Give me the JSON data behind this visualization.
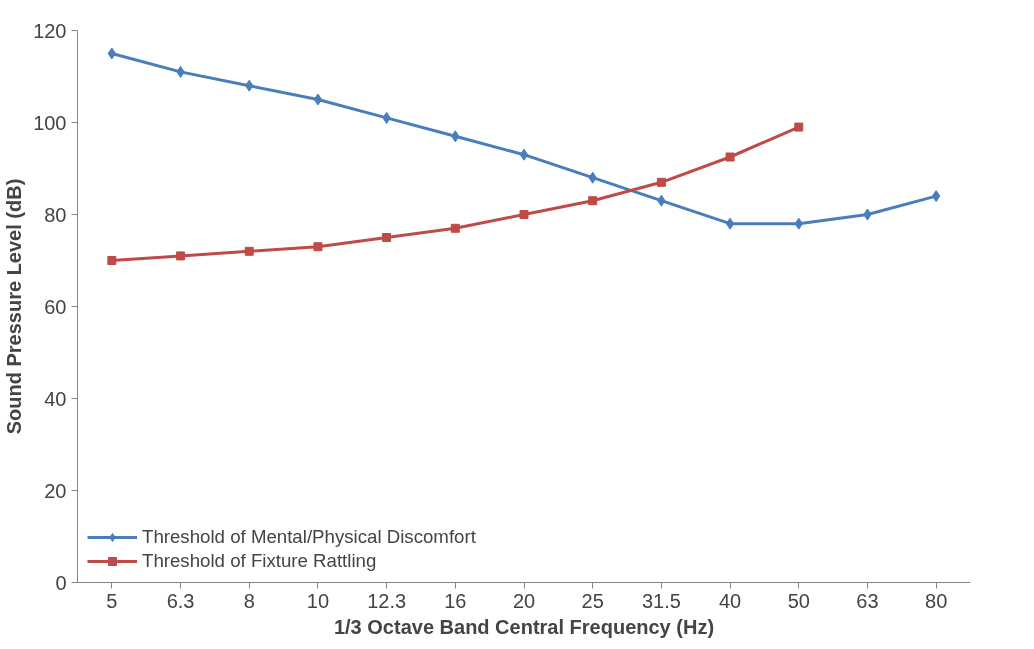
{
  "chart_data": {
    "type": "line",
    "xlabel": "1/3 Octave Band Central Frequency (Hz)",
    "ylabel": "Sound Pressure Level (dB)",
    "categories": [
      "5",
      "6.3",
      "8",
      "10",
      "12.3",
      "16",
      "20",
      "25",
      "31.5",
      "40",
      "50",
      "63",
      "80"
    ],
    "series": [
      {
        "name": "Threshold of Mental/Physical Discomfort",
        "color": "#4a7ebb",
        "marker": "diamond",
        "values": [
          115,
          111,
          108,
          105,
          101,
          97,
          93,
          88,
          83,
          78,
          78,
          80,
          84
        ]
      },
      {
        "name": "Threshold of Fixture Rattling",
        "color": "#be4b48",
        "marker": "square",
        "values": [
          70,
          71,
          72,
          73,
          75,
          77,
          80,
          83,
          87,
          92.5,
          99,
          null,
          null
        ]
      }
    ],
    "ylim": [
      0,
      120
    ],
    "yticks": [
      0,
      20,
      40,
      60,
      80,
      100,
      120
    ],
    "grid": false,
    "legend": "bottom left",
    "line_style": "solid"
  }
}
